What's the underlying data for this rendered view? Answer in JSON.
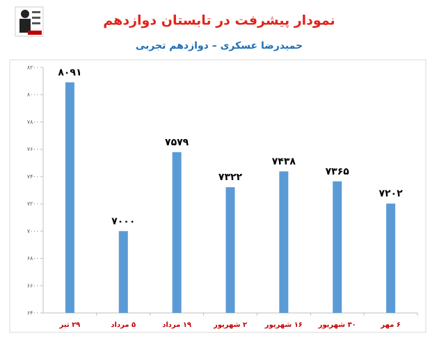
{
  "chart_data": {
    "type": "bar",
    "title": "نمودار پیشرفت در تابستان دوازدهم",
    "subtitle": "حمیدرضا عسکری – دوازدهم تجربی",
    "categories": [
      "۲۹ تیر",
      "۵ مرداد",
      "۱۹ مرداد",
      "۲ شهریور",
      "۱۶ شهریور",
      "۳۰ شهریور",
      "۶ مهر"
    ],
    "values": [
      8091,
      7000,
      7579,
      7322,
      7438,
      7365,
      7202
    ],
    "value_labels": [
      "۸۰۹۱",
      "۷۰۰۰",
      "۷۵۷۹",
      "۷۳۲۲",
      "۷۴۳۸",
      "۷۳۶۵",
      "۷۲۰۲"
    ],
    "color": "#5b9bd5",
    "ylim": [
      6400,
      8200
    ],
    "yticks": [
      {
        "value": 6400,
        "label": "۶۴۰۰"
      },
      {
        "value": 6600,
        "label": "۶۶۰۰"
      },
      {
        "value": 6800,
        "label": "۶۸۰۰"
      },
      {
        "value": 7000,
        "label": "۷۰۰۰"
      },
      {
        "value": 7200,
        "label": "۷۲۰۰"
      },
      {
        "value": 7400,
        "label": "۷۴۰۰"
      },
      {
        "value": 7600,
        "label": "۷۶۰۰"
      },
      {
        "value": 7800,
        "label": "۷۸۰۰"
      },
      {
        "value": 8000,
        "label": "۸۰۰۰"
      },
      {
        "value": 8200,
        "label": "۸۲۰۰"
      }
    ],
    "grid": false
  }
}
